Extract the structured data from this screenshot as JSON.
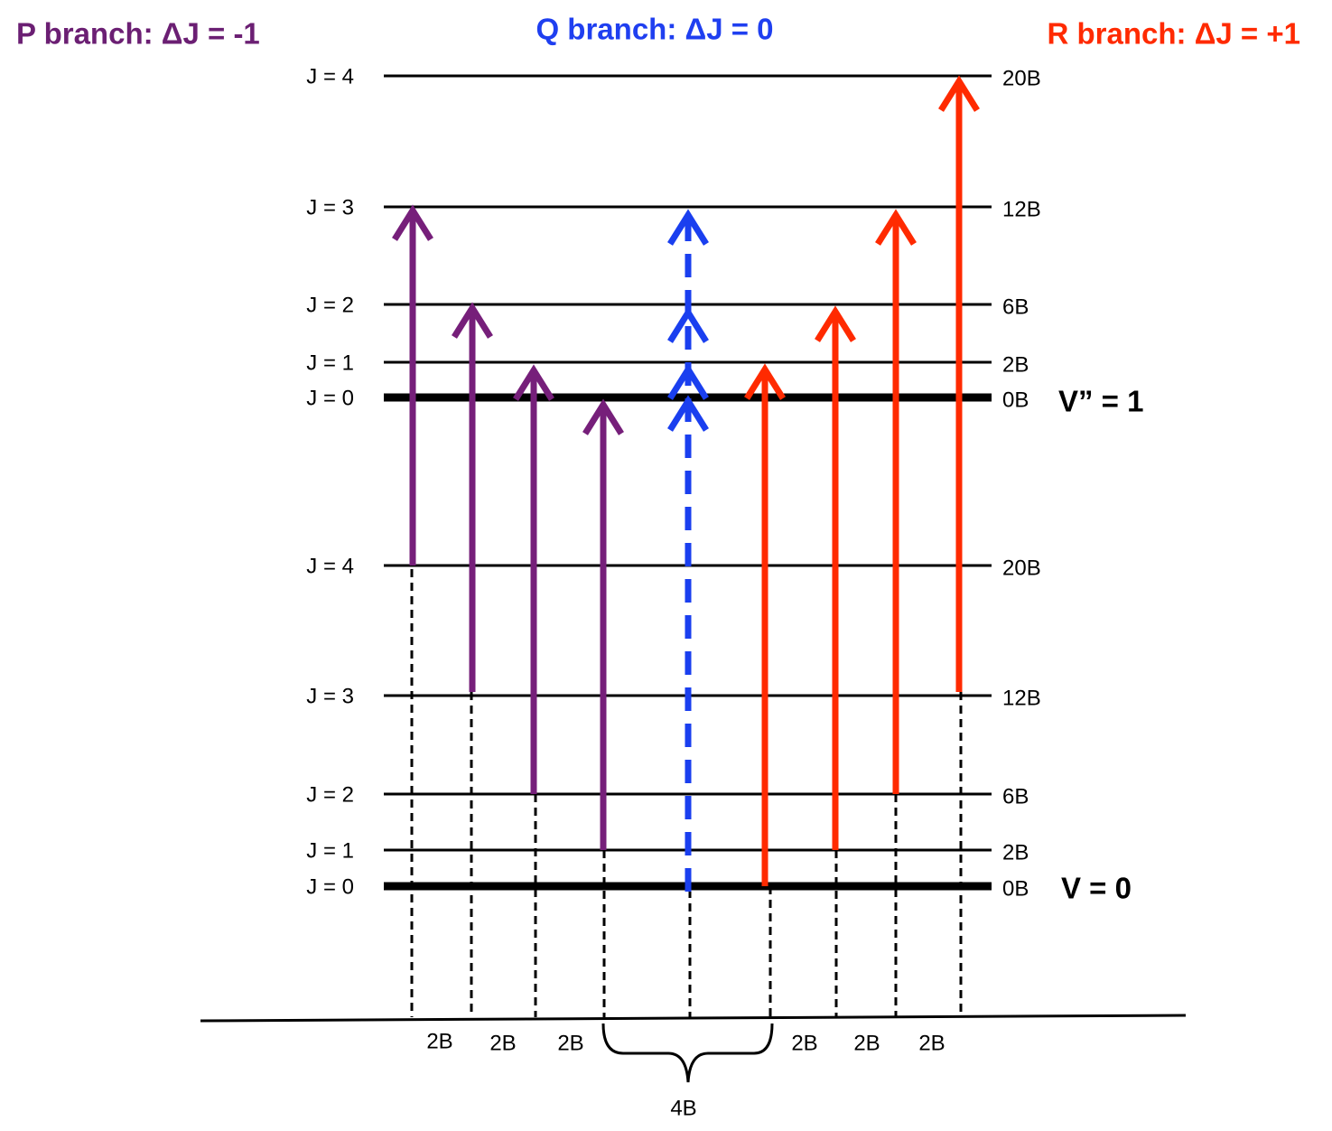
{
  "titles": {
    "p": "P branch: ΔJ = -1",
    "q": "Q branch: ΔJ = 0",
    "r": "R branch: ΔJ = +1"
  },
  "upper": {
    "label": "V” = 1",
    "levels": [
      {
        "j": "J = 0",
        "e": "0B"
      },
      {
        "j": "J = 1",
        "e": "2B"
      },
      {
        "j": "J = 2",
        "e": "6B"
      },
      {
        "j": "J = 3",
        "e": "12B"
      },
      {
        "j": "J = 4",
        "e": "20B"
      }
    ]
  },
  "lower": {
    "label": "V = 0",
    "levels": [
      {
        "j": "J = 0",
        "e": "0B"
      },
      {
        "j": "J = 1",
        "e": "2B"
      },
      {
        "j": "J = 2",
        "e": "6B"
      },
      {
        "j": "J = 3",
        "e": "12B"
      },
      {
        "j": "J = 4",
        "e": "20B"
      }
    ]
  },
  "spacings": [
    "2B",
    "2B",
    "2B",
    "4B",
    "2B",
    "2B",
    "2B"
  ]
}
